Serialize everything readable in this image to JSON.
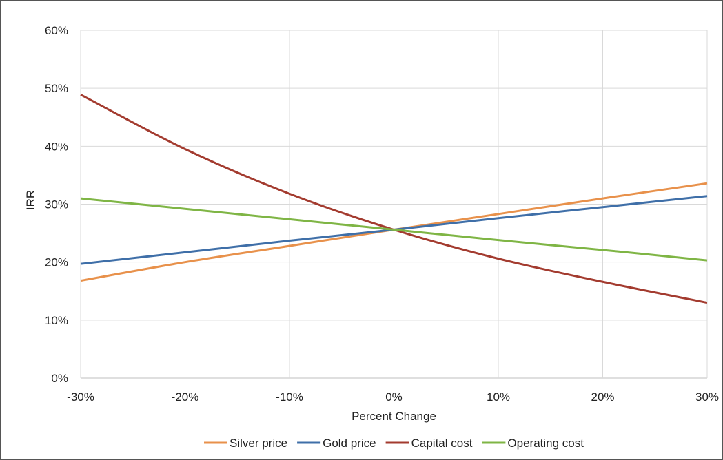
{
  "chart_data": {
    "type": "line",
    "title": "",
    "xlabel": "Percent Change",
    "ylabel": "IRR",
    "x": [
      -30,
      -20,
      -10,
      0,
      10,
      20,
      30
    ],
    "x_tick_labels": [
      "-30%",
      "-20%",
      "-10%",
      "0%",
      "10%",
      "20%",
      "30%"
    ],
    "y_tick_labels": [
      "0%",
      "10%",
      "20%",
      "30%",
      "40%",
      "50%",
      "60%"
    ],
    "y_ticks": [
      0,
      10,
      20,
      30,
      40,
      50,
      60
    ],
    "xlim": [
      -30,
      30
    ],
    "ylim": [
      0,
      60
    ],
    "grid": true,
    "legend_position": "bottom",
    "series": [
      {
        "name": "Silver price",
        "color": "#e8914b",
        "values": [
          16.8,
          20.0,
          22.8,
          25.6,
          28.3,
          31.0,
          33.6
        ]
      },
      {
        "name": "Gold price",
        "color": "#3f6fa8",
        "values": [
          19.7,
          21.7,
          23.7,
          25.6,
          27.6,
          29.5,
          31.4
        ]
      },
      {
        "name": "Capital cost",
        "color": "#a33b2f",
        "values": [
          48.9,
          39.5,
          31.8,
          25.6,
          20.6,
          16.6,
          13.0
        ]
      },
      {
        "name": "Operating cost",
        "color": "#7fb545",
        "values": [
          31.0,
          29.2,
          27.4,
          25.6,
          23.8,
          22.1,
          20.3
        ]
      }
    ]
  }
}
